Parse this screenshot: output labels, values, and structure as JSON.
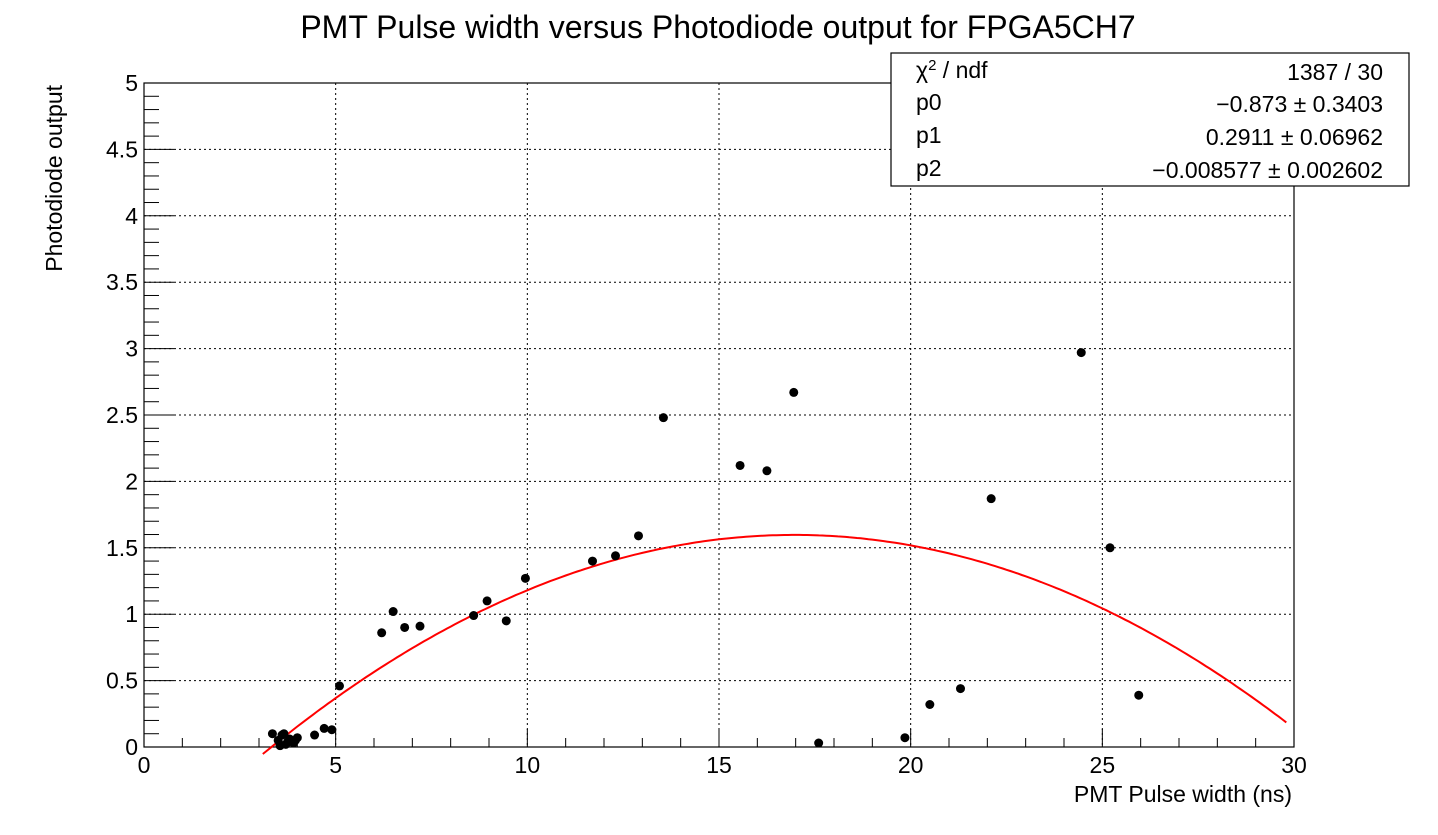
{
  "chart_data": {
    "type": "scatter",
    "title": "PMT Pulse width versus Photodiode output for FPGA5CH7",
    "xlabel": "PMT Pulse width (ns)",
    "ylabel": "Photodiode output",
    "xlim": [
      0,
      30
    ],
    "ylim": [
      0,
      5
    ],
    "x_ticks": [
      0,
      5,
      10,
      15,
      20,
      25,
      30
    ],
    "x_tick_labels": [
      "0",
      "5",
      "10",
      "15",
      "20",
      "25",
      "30"
    ],
    "y_ticks": [
      0,
      0.5,
      1,
      1.5,
      2,
      2.5,
      3,
      3.5,
      4,
      4.5,
      5
    ],
    "y_tick_labels": [
      "0",
      "0.5",
      "1",
      "1.5",
      "2",
      "2.5",
      "3",
      "3.5",
      "4",
      "4.5",
      "5"
    ],
    "grid": true,
    "marker_color": "#000000",
    "fit_color": "#ff0000",
    "points": [
      {
        "x": 3.35,
        "y": 0.1
      },
      {
        "x": 3.5,
        "y": 0.05
      },
      {
        "x": 3.55,
        "y": 0.01
      },
      {
        "x": 3.6,
        "y": 0.09
      },
      {
        "x": 3.65,
        "y": 0.1
      },
      {
        "x": 3.7,
        "y": 0.02
      },
      {
        "x": 3.75,
        "y": 0.04
      },
      {
        "x": 3.8,
        "y": 0.06
      },
      {
        "x": 3.85,
        "y": 0.05
      },
      {
        "x": 3.9,
        "y": 0.03
      },
      {
        "x": 3.95,
        "y": 0.05
      },
      {
        "x": 4.0,
        "y": 0.07
      },
      {
        "x": 4.45,
        "y": 0.09
      },
      {
        "x": 4.7,
        "y": 0.14
      },
      {
        "x": 4.9,
        "y": 0.13
      },
      {
        "x": 5.1,
        "y": 0.46
      },
      {
        "x": 6.2,
        "y": 0.86
      },
      {
        "x": 6.5,
        "y": 1.02
      },
      {
        "x": 6.8,
        "y": 0.9
      },
      {
        "x": 7.2,
        "y": 0.91
      },
      {
        "x": 8.6,
        "y": 0.99
      },
      {
        "x": 8.95,
        "y": 1.1
      },
      {
        "x": 9.45,
        "y": 0.95
      },
      {
        "x": 9.95,
        "y": 1.27
      },
      {
        "x": 11.7,
        "y": 1.4
      },
      {
        "x": 12.3,
        "y": 1.44
      },
      {
        "x": 12.9,
        "y": 1.59
      },
      {
        "x": 13.55,
        "y": 2.48
      },
      {
        "x": 15.55,
        "y": 2.12
      },
      {
        "x": 16.25,
        "y": 2.08
      },
      {
        "x": 16.95,
        "y": 2.67
      },
      {
        "x": 17.6,
        "y": 0.03
      },
      {
        "x": 19.85,
        "y": 0.07
      },
      {
        "x": 20.5,
        "y": 0.32
      },
      {
        "x": 21.3,
        "y": 0.44
      },
      {
        "x": 22.1,
        "y": 1.87
      },
      {
        "x": 24.45,
        "y": 2.97
      },
      {
        "x": 25.2,
        "y": 1.5
      },
      {
        "x": 25.95,
        "y": 0.39
      }
    ],
    "fit": {
      "type": "pol2",
      "p0": -0.873,
      "p1": 0.2911,
      "p2": -0.008577,
      "x_range": [
        3.1,
        29.8
      ]
    },
    "stats_box": {
      "placement": "top-right",
      "rows": [
        {
          "label_main": "χ",
          "label_sup": "2",
          "label_rest": " / ndf",
          "value": "1387 / 30"
        },
        {
          "label_main": "p0",
          "label_sup": "",
          "label_rest": "",
          "value": "−0.873 ± 0.3403"
        },
        {
          "label_main": "p1",
          "label_sup": "",
          "label_rest": "",
          "value": "0.2911 ± 0.06962"
        },
        {
          "label_main": "p2",
          "label_sup": "",
          "label_rest": "",
          "value": "−0.008577 ± 0.002602"
        }
      ]
    }
  }
}
